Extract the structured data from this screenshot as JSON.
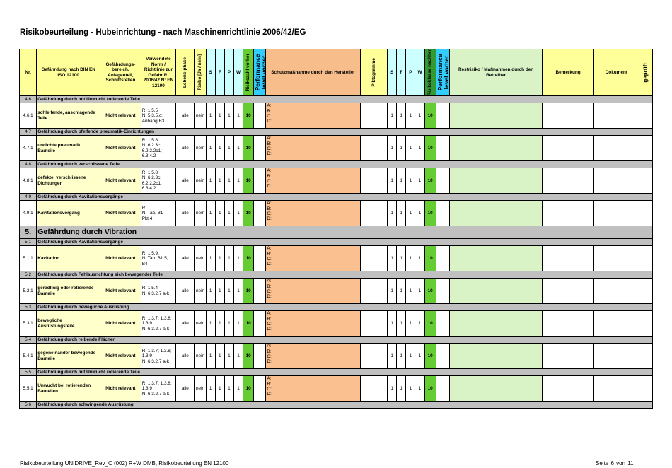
{
  "title": "Risikobeurteilung - Hubeinrichtung - nach Maschinenrichtlinie 2006/42/EG",
  "headers": {
    "nr": "Nr.",
    "gefaehrdung": "Gefährdung nach DIN EN ISO 12100",
    "bereich": "Gefährdungs-bereich, Anlagenteil, Schnittstellen",
    "norm": "Verwendete Norm / Richtlinie zur Gefahr R: 2006/42 N: EN 12100",
    "lebensphase": "Lebens-phase",
    "risiko": "Risiko [Ja / nein]",
    "s": "S",
    "f": "F",
    "p": "P",
    "w": "W",
    "risikozahl": "Risikozahl vorher",
    "performance": "Performance level vorher",
    "schutz": "Schutzmaßnahme durch den Hersteller",
    "piktogramme": "Piktogramme",
    "s2": "S",
    "f2": "F",
    "p2": "P",
    "w2": "W",
    "risikoklasse": "Risikoklasse nachher",
    "performance2": "Performance level vorher",
    "restrisiko": "Restrisiko / Maßnahmen durch den Betreiber",
    "bemerkung": "Bemerkung",
    "dokument": "Dokument",
    "geprueft": "geprüft"
  },
  "rows": [
    {
      "type": "sub",
      "nr": "4.6",
      "text": "Gefährdung durch mit Unwucht rotierende Teile"
    },
    {
      "type": "data",
      "nr": "4.6.1",
      "name": "schleifende, anschlagende Teile",
      "bereich": "Nicht relevant",
      "norm": [
        "R: 1.5.5",
        "N: 5.3.5.c;",
        "Anhang B3"
      ],
      "phase": "alle",
      "risiko": "nein",
      "s": "1",
      "f": "1",
      "p": "1",
      "w": "1",
      "rz": "10",
      "schutz": [
        "A:",
        "B:",
        "C:",
        "D:"
      ],
      "s2": "1",
      "f2": "1",
      "p2": "1",
      "w2": "1",
      "rk": "10"
    },
    {
      "type": "sub",
      "nr": "4.7",
      "text": "Gefährdung durch pfeifende pneumatik-Einrichtungen"
    },
    {
      "type": "data",
      "nr": "4.7.1",
      "name": "undichte pneumatik Bauteile",
      "bereich": "Nicht relevant",
      "norm": [
        "R: 1.5.8",
        "N: 6.2.3c;",
        "6.2.2.2c1;",
        "6.3.4.2"
      ],
      "phase": "alle",
      "risiko": "nein",
      "s": "1",
      "f": "1",
      "p": "1",
      "w": "1",
      "rz": "10",
      "schutz": [
        "A:",
        "B:",
        "C:",
        "D:"
      ],
      "s2": "1",
      "f2": "1",
      "p2": "1",
      "w2": "1",
      "rk": "10"
    },
    {
      "type": "sub",
      "nr": "4.8",
      "text": "Gefährdung durch verschlissene Teile"
    },
    {
      "type": "data",
      "nr": "4.8.1",
      "name": "defekte, verschlissene Dichtungen",
      "bereich": "Nicht relevant",
      "norm": [
        "R: 1.5.8",
        "N: 6.2.3c;",
        "6.2.2.2c1;",
        "6.3.4.2"
      ],
      "phase": "alle",
      "risiko": "nein",
      "s": "1",
      "f": "1",
      "p": "1",
      "w": "1",
      "rz": "10",
      "schutz": [
        "A:",
        "B:",
        "C:",
        "D:"
      ],
      "s2": "1",
      "f2": "1",
      "p2": "1",
      "w2": "1",
      "rk": "10"
    },
    {
      "type": "sub",
      "nr": "4.9",
      "text": "Gefährdung durch Kavitationsvorgänge"
    },
    {
      "type": "data",
      "nr": "4.9.1",
      "name": "Kavitationsvorgang",
      "bereich": "Nicht relevant",
      "norm": [
        "R:",
        "N: Tab. B1",
        "Pkt.4"
      ],
      "phase": "alle",
      "risiko": "nein",
      "s": "1",
      "f": "1",
      "p": "1",
      "w": "1",
      "rz": "10",
      "schutz": [
        "A:",
        "B:",
        "C:",
        "D:"
      ],
      "s2": "1",
      "f2": "1",
      "p2": "1",
      "w2": "1",
      "rk": "10"
    },
    {
      "type": "sec",
      "nr": "5.",
      "text": "Gefährdung durch Vibration"
    },
    {
      "type": "sub",
      "nr": "5.1",
      "text": "Gefährdung durch Kavitationsvorgänge"
    },
    {
      "type": "data",
      "nr": "5.1.1",
      "name": "Kavitation",
      "bereich": "Nicht relevant",
      "norm": [
        "R: 1.5.9.",
        "N: Tab. B1.5,",
        "B4"
      ],
      "phase": "alle",
      "risiko": "nein",
      "s": "1",
      "f": "1",
      "p": "1",
      "w": "1",
      "rz": "10",
      "schutz": [
        "A:",
        "B:",
        "C:",
        "D:"
      ],
      "s2": "1",
      "f2": "1",
      "p2": "1",
      "w2": "1",
      "rk": "10"
    },
    {
      "type": "sub",
      "nr": "5.2",
      "text": "Gefährdung durch Fehlausrichtung sich bewegender Teile"
    },
    {
      "type": "data",
      "nr": "5.2.1",
      "name": "geradlinig oder rotierende Bauteile",
      "bereich": "Nicht relevant",
      "norm": [
        "R: 1.5.4",
        "N: 6.3.2.7 a-k"
      ],
      "phase": "alle",
      "risiko": "nein",
      "s": "1",
      "f": "1",
      "p": "1",
      "w": "1",
      "rz": "10",
      "schutz": [
        "A:",
        "B:",
        "C:",
        "D:"
      ],
      "s2": "1",
      "f2": "1",
      "p2": "1",
      "w2": "1",
      "rk": "10"
    },
    {
      "type": "sub",
      "nr": "5.3",
      "text": "Gefährdung durch bewegliche Ausrüstung"
    },
    {
      "type": "data",
      "nr": "5.3.1",
      "name": "bewegliche Ausrüstungsteile",
      "bereich": "Nicht relevant",
      "norm": [
        "R: 1.3.7; 1.3.8;",
        "1.3.9",
        "N: 6.3.2.7 a-k"
      ],
      "phase": "alle",
      "risiko": "nein",
      "s": "1",
      "f": "1",
      "p": "1",
      "w": "1",
      "rz": "10",
      "schutz": [
        "A:",
        "B:",
        "C:",
        "D:"
      ],
      "s2": "1",
      "f2": "1",
      "p2": "1",
      "w2": "1",
      "rk": "10"
    },
    {
      "type": "sub",
      "nr": "5.4",
      "text": "Gefährdung durch reibende Flächen"
    },
    {
      "type": "data",
      "nr": "5.4.1",
      "name": "gegeneinander bewegende Bauteile",
      "bereich": "Nicht relevant",
      "norm": [
        "R: 1.3.7; 1.3.8;",
        "1.3.9",
        "N: 6.3.2.7 a-k"
      ],
      "phase": "alle",
      "risiko": "nein",
      "s": "1",
      "f": "1",
      "p": "1",
      "w": "1",
      "rz": "10",
      "schutz": [
        "A:",
        "B:",
        "C:",
        "D:"
      ],
      "s2": "1",
      "f2": "1",
      "p2": "1",
      "w2": "1",
      "rk": "10"
    },
    {
      "type": "sub",
      "nr": "5.5",
      "text": "Gefährdung durch mit Unwucht rotierende Teile"
    },
    {
      "type": "data",
      "nr": "5.5.1",
      "name": "Unwucht bei rotierenden Bauteilen",
      "bereich": "Nicht relevant",
      "norm": [
        "R: 1.3.7; 1.3.8;",
        "1.3.9",
        "N: 6.3.2.7 a-k"
      ],
      "phase": "alle",
      "risiko": "nein",
      "s": "1",
      "f": "1",
      "p": "1",
      "w": "1",
      "rz": "10",
      "schutz": [
        "A:",
        "B:",
        "C:",
        "D:"
      ],
      "s2": "1",
      "f2": "1",
      "p2": "1",
      "w2": "1",
      "rk": "10"
    },
    {
      "type": "sub",
      "nr": "5.6",
      "text": "Gefährdung durch schwingende Ausrüstung"
    }
  ],
  "footer": {
    "left": "Risikobeurteilung UNIDRIVE_Rev_C (002) R+W DMB, Risikobeurteilung EN 12100",
    "page_label": "Seite",
    "page": "6",
    "of_label": "von",
    "total": "11"
  }
}
